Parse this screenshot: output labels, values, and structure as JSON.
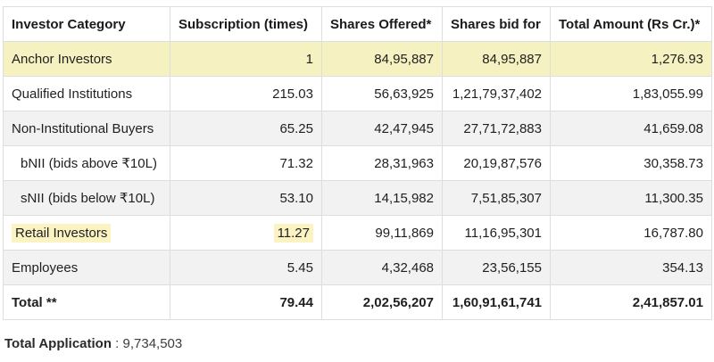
{
  "table": {
    "headers": [
      "Investor Category",
      "Subscription (times)",
      "Shares Offered*",
      "Shares bid for",
      "Total Amount (Rs Cr.)*"
    ],
    "rows": [
      {
        "category": "Anchor Investors",
        "subscription": "1",
        "shares_offered": "84,95,887",
        "shares_bid": "84,95,887",
        "amount": "1,276.93"
      },
      {
        "category": "Qualified Institutions",
        "subscription": "215.03",
        "shares_offered": "56,63,925",
        "shares_bid": "1,21,79,37,402",
        "amount": "1,83,055.99"
      },
      {
        "category": "Non-Institutional Buyers",
        "subscription": "65.25",
        "shares_offered": "42,47,945",
        "shares_bid": "27,71,72,883",
        "amount": "41,659.08"
      },
      {
        "category": "bNII (bids above ₹10L)",
        "subscription": "71.32",
        "shares_offered": "28,31,963",
        "shares_bid": "20,19,87,576",
        "amount": "30,358.73"
      },
      {
        "category": "sNII (bids below ₹10L)",
        "subscription": "53.10",
        "shares_offered": "14,15,982",
        "shares_bid": "7,51,85,307",
        "amount": "11,300.35"
      },
      {
        "category": "Retail Investors",
        "subscription": "11.27",
        "shares_offered": "99,11,869",
        "shares_bid": "11,16,95,301",
        "amount": "16,787.80"
      },
      {
        "category": "Employees",
        "subscription": "5.45",
        "shares_offered": "4,32,468",
        "shares_bid": "23,56,155",
        "amount": "354.13"
      },
      {
        "category": "Total **",
        "subscription": "79.44",
        "shares_offered": "2,02,56,207",
        "shares_bid": "1,60,91,61,741",
        "amount": "2,41,857.01"
      }
    ]
  },
  "footer": {
    "label": "Total Application",
    "separator": " : ",
    "value": "9,734,503"
  },
  "colors": {
    "anchor_row_bg": "#f6f1c1",
    "highlight_bg": "#fbf3c2",
    "alt_row_bg": "#f2f2f2",
    "border": "#dedede"
  }
}
